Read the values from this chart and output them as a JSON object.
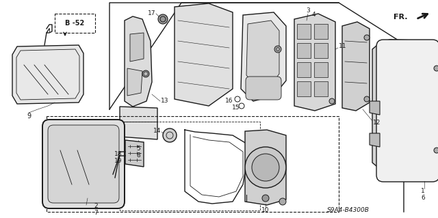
{
  "bg_color": "#ffffff",
  "line_color": "#1a1a1a",
  "figsize": [
    6.4,
    3.19
  ],
  "dpi": 100,
  "fr_text": "FR.",
  "diagram_code": "S9A4-B4300B",
  "b52_text": "B -52"
}
